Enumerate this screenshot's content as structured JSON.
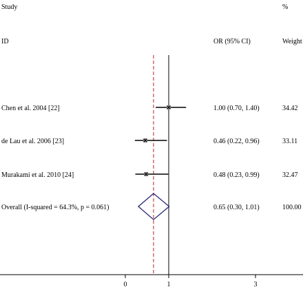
{
  "header": {
    "study_label": "Study",
    "id_label": "ID",
    "or_label": "OR (95% CI)",
    "pct_label": "%",
    "weight_label": "Weight"
  },
  "chart_data": {
    "type": "forest",
    "x_ticks": [
      0,
      1,
      3
    ],
    "null_line": 1,
    "overall_line": 0.65,
    "studies": [
      {
        "label": "Chen et al. 2004 [22]",
        "or": 1.0,
        "lo": 0.7,
        "hi": 1.4,
        "or_text": "1.00 (0.70, 1.40)",
        "weight": "34.42"
      },
      {
        "label": "de Lau et al. 2006 [23]",
        "or": 0.46,
        "lo": 0.22,
        "hi": 0.96,
        "or_text": "0.46 (0.22, 0.96)",
        "weight": "33.11"
      },
      {
        "label": "Murakami et al. 2010 [24]",
        "or": 0.48,
        "lo": 0.23,
        "hi": 0.99,
        "or_text": "0.48 (0.23, 0.99)",
        "weight": "32.47"
      }
    ],
    "overall": {
      "label": "Overall  (I-squared = 64.3%, p = 0.061)",
      "or": 0.65,
      "lo": 0.3,
      "hi": 1.01,
      "or_text": "0.65 (0.30, 1.01)",
      "weight": "100.00"
    },
    "colors": {
      "diamond": "#1c1c6e",
      "overall_line": "#b22222",
      "axis": "#000000"
    }
  }
}
